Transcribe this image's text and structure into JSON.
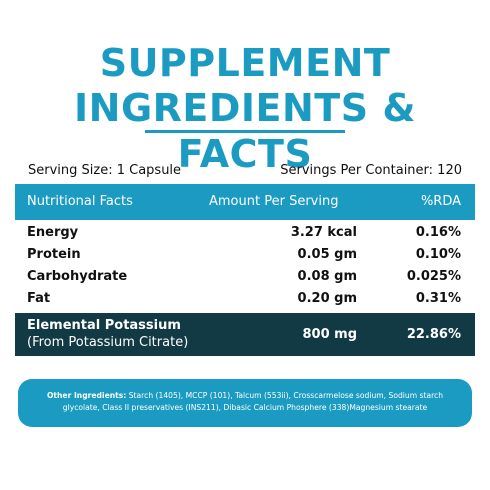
{
  "colors": {
    "accent": "#1b9bc2",
    "dark": "#123a44"
  },
  "title": {
    "line1": "SUPPLEMENT",
    "line2": "INGREDIENTS & FACTS"
  },
  "serving": {
    "size": "Serving Size: 1 Capsule",
    "per_container": "Servings Per Container: 120"
  },
  "table": {
    "headers": [
      "Nutritional Facts",
      "Amount Per Serving",
      "%RDA"
    ],
    "rows": [
      {
        "name": "Energy",
        "amount": "3.27 kcal",
        "rda": "0.16%"
      },
      {
        "name": "Protein",
        "amount": "0.05 gm",
        "rda": "0.10%"
      },
      {
        "name": "Carbohydrate",
        "amount": "0.08 gm",
        "rda": "0.025%"
      },
      {
        "name": "Fat",
        "amount": "0.20 gm",
        "rda": "0.31%"
      }
    ],
    "highlight": {
      "name": "Elemental Potassium",
      "sub": "(From Potassium Citrate)",
      "amount": "800 mg",
      "rda": "22.86%"
    }
  },
  "other": {
    "label": "Other Ingredients:",
    "text": "Starch (1405), MCCP (101), Talcum (553ii), Crosscarmelose sodium, Sodium starch glycolate, Class II preservatives (INS211), Dibasic Calcium Phosphere (338)Magnesium stearate"
  }
}
